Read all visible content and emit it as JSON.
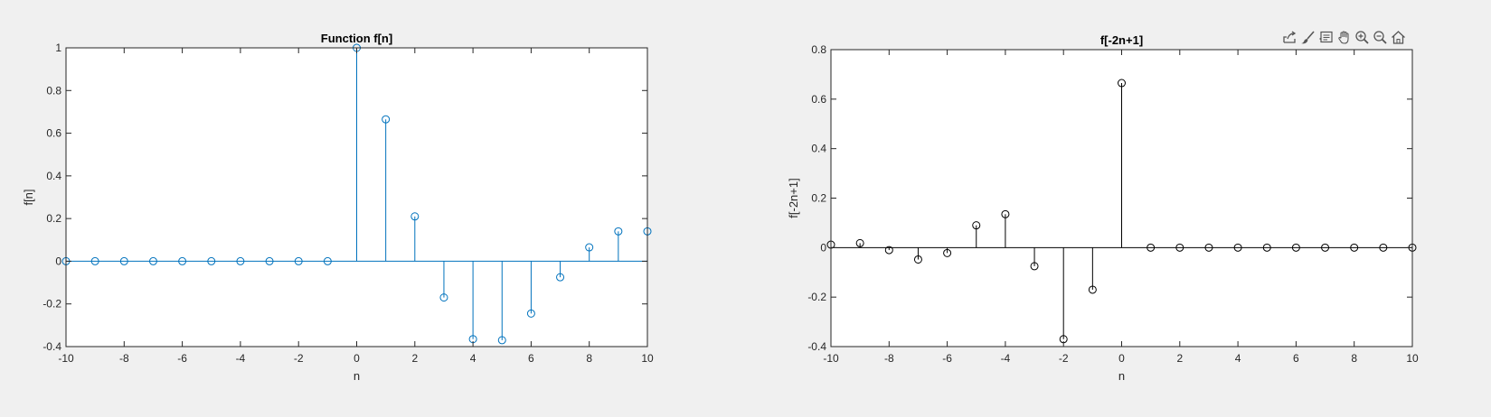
{
  "toolbar": {
    "icons": [
      "export-icon",
      "brush-icon",
      "data-tips-icon",
      "pan-hand-icon",
      "zoom-in-icon",
      "zoom-out-icon",
      "home-icon"
    ]
  },
  "chart_data": [
    {
      "type": "stem",
      "title": "Function f[n]",
      "xlabel": "n",
      "ylabel": "f[n]",
      "xlim": [
        -10,
        10
      ],
      "ylim": [
        -0.4,
        1
      ],
      "xticks": [
        -10,
        -8,
        -6,
        -4,
        -2,
        0,
        2,
        4,
        6,
        8,
        10
      ],
      "yticks": [
        -0.4,
        -0.2,
        0,
        0.2,
        0.4,
        0.6,
        0.8,
        1
      ],
      "color": "#0072BD",
      "x": [
        -10,
        -9,
        -8,
        -7,
        -6,
        -5,
        -4,
        -3,
        -2,
        -1,
        0,
        1,
        2,
        3,
        4,
        5,
        6,
        7,
        8,
        9,
        10
      ],
      "y": [
        0,
        0,
        0,
        0,
        0,
        0,
        0,
        0,
        0,
        0,
        1.0,
        0.665,
        0.21,
        -0.17,
        -0.365,
        -0.37,
        -0.245,
        -0.075,
        0.065,
        0.14,
        0.14
      ]
    },
    {
      "type": "stem",
      "title": "f[-2n+1]",
      "xlabel": "n",
      "ylabel": "f[-2n+1]",
      "xlim": [
        -10,
        10
      ],
      "ylim": [
        -0.4,
        0.8
      ],
      "xticks": [
        -10,
        -8,
        -6,
        -4,
        -2,
        0,
        2,
        4,
        6,
        8,
        10
      ],
      "yticks": [
        -0.4,
        -0.2,
        0,
        0.2,
        0.4,
        0.6,
        0.8
      ],
      "color": "#000000",
      "x": [
        -10,
        -9,
        -8,
        -7,
        -6,
        -5,
        -4,
        -3,
        -2,
        -1,
        0,
        1,
        2,
        3,
        4,
        5,
        6,
        7,
        8,
        9,
        10
      ],
      "y": [
        0.012,
        0.018,
        -0.01,
        -0.048,
        -0.022,
        0.09,
        0.135,
        -0.075,
        -0.37,
        -0.17,
        0.665,
        0,
        0,
        0,
        0,
        0,
        0,
        0,
        0,
        0,
        0
      ]
    }
  ]
}
